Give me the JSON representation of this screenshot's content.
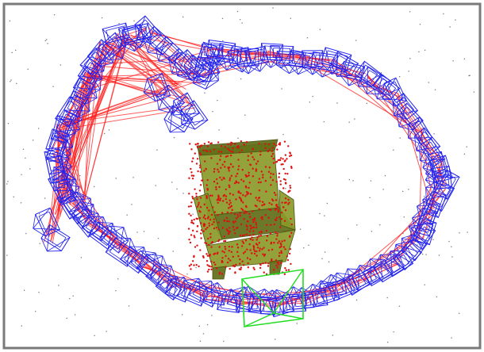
{
  "figure": {
    "frame_color": "#7a7a7a",
    "background_color": "#ffffff",
    "colors": {
      "camera_frustum": "#2222ee",
      "selected_camera_frustum": "#22dd22",
      "pose_graph_edge": "#ff1a1a",
      "object_mesh": "#8a9a2a",
      "object_mesh_shadow": "#5f6e18",
      "object_points": "#dd1111",
      "background_points": "#222222"
    },
    "icons": {
      "camera": "camera-frustum-icon",
      "object": "chair-mesh-icon"
    }
  }
}
